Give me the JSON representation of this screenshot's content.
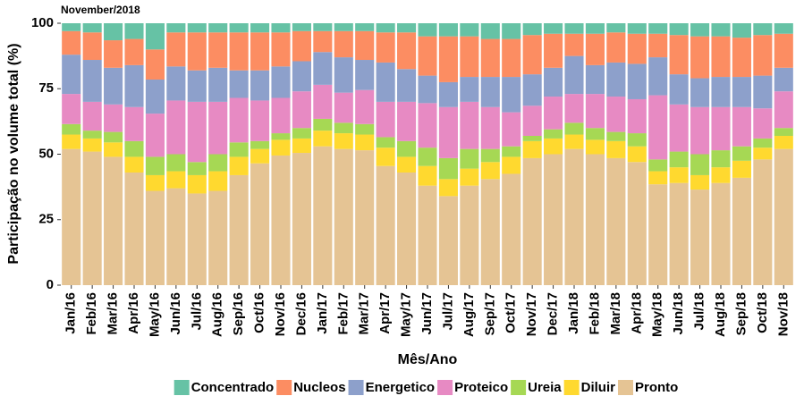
{
  "chart_data": {
    "type": "stacked-bar",
    "subtitle": "November/2018",
    "x_label": "Mês/Ano",
    "y_label": "Participação no volume total (%)",
    "categories": [
      "Jan/16",
      "Feb/16",
      "Mar/16",
      "Apr/16",
      "May/16",
      "Jun/16",
      "Jul/16",
      "Aug/16",
      "Sep/16",
      "Oct/16",
      "Nov/16",
      "Dec/16",
      "Jan/17",
      "Feb/17",
      "Mar/17",
      "Apr/17",
      "May/17",
      "Jun/17",
      "Jul/17",
      "Aug/17",
      "Sep/17",
      "Oct/17",
      "Nov/17",
      "Dec/17",
      "Jan/18",
      "Feb/18",
      "Mar/18",
      "Apr/18",
      "May/18",
      "Jun/18",
      "Jul/18",
      "Aug/18",
      "Sep/18",
      "Oct/18",
      "Nov/18"
    ],
    "series": [
      {
        "name": "Concentrado",
        "color": "#66c2a5",
        "values": [
          3,
          3.5,
          6.5,
          6,
          10,
          3.5,
          3.5,
          3.5,
          3.5,
          3.5,
          3.5,
          3,
          3,
          3,
          3,
          3.5,
          3.5,
          5,
          5,
          5,
          6,
          6,
          4.5,
          4,
          4,
          4,
          3.5,
          4,
          4,
          4.5,
          5,
          5,
          5.5,
          4.5,
          4
        ]
      },
      {
        "name": "Nucleos",
        "color": "#fc8d62",
        "values": [
          9,
          10.5,
          10.5,
          10,
          11.5,
          13,
          14.5,
          13.5,
          14.5,
          14.5,
          13,
          11.5,
          8,
          10,
          11,
          11.5,
          14,
          15,
          17.5,
          15.5,
          14.5,
          14.5,
          15,
          13,
          8.5,
          12,
          11.5,
          11.5,
          9,
          15,
          16,
          15.5,
          15,
          15.5,
          13
        ]
      },
      {
        "name": "Energetico",
        "color": "#8da0cb",
        "values": [
          15,
          16,
          14,
          16,
          13,
          13,
          12,
          13,
          10.5,
          11.5,
          12,
          11.5,
          12.5,
          13.5,
          11.5,
          15,
          12.5,
          10.5,
          9.5,
          9.5,
          11.5,
          13.5,
          12,
          11,
          14.5,
          11,
          13,
          13.5,
          14.5,
          11.5,
          11,
          11.5,
          11.5,
          12.5,
          9
        ]
      },
      {
        "name": "Proteico",
        "color": "#e78ac3",
        "values": [
          11.5,
          11,
          10.5,
          13,
          16.5,
          20.5,
          23,
          20,
          17,
          15.5,
          13.5,
          14,
          13,
          11.5,
          13,
          13.5,
          15,
          17,
          19.5,
          18,
          16,
          13,
          11.5,
          12.5,
          11,
          13,
          13.5,
          13,
          24.5,
          18,
          18,
          16.5,
          15,
          11.5,
          14
        ]
      },
      {
        "name": "Ureia",
        "color": "#a6d854",
        "values": [
          4,
          3,
          4,
          6,
          7,
          6.5,
          5,
          6.5,
          5.5,
          3,
          2.5,
          4,
          4.5,
          4,
          4,
          4,
          6,
          7,
          8,
          7.5,
          5,
          4,
          2,
          3.5,
          4.5,
          4.5,
          3.5,
          5,
          4.5,
          6,
          8,
          6.5,
          5.5,
          3.5,
          3
        ]
      },
      {
        "name": "Diluir",
        "color": "#ffd92f",
        "values": [
          5.5,
          5,
          5.5,
          6,
          6,
          6.5,
          7,
          7.5,
          7,
          5.5,
          6,
          5.5,
          6,
          6,
          6,
          7,
          6,
          7.5,
          6.5,
          6.5,
          6.5,
          6.5,
          6.5,
          6,
          5.5,
          5.5,
          6.5,
          6,
          5,
          6,
          5.5,
          6,
          6.5,
          4.5,
          5
        ]
      },
      {
        "name": "Pronto",
        "color": "#e5c494",
        "values": [
          52,
          51,
          49,
          43,
          36,
          37,
          35,
          36,
          42,
          46.5,
          49.5,
          50.5,
          53,
          52,
          51.5,
          45.5,
          43,
          38,
          34,
          38,
          40.5,
          42.5,
          48.5,
          50,
          52,
          50,
          48.5,
          47,
          38.5,
          39,
          36.5,
          39,
          41,
          48,
          52
        ]
      }
    ],
    "ylim": [
      0,
      100
    ],
    "yticks": [
      0,
      25,
      50,
      75,
      100
    ],
    "grid": false
  }
}
